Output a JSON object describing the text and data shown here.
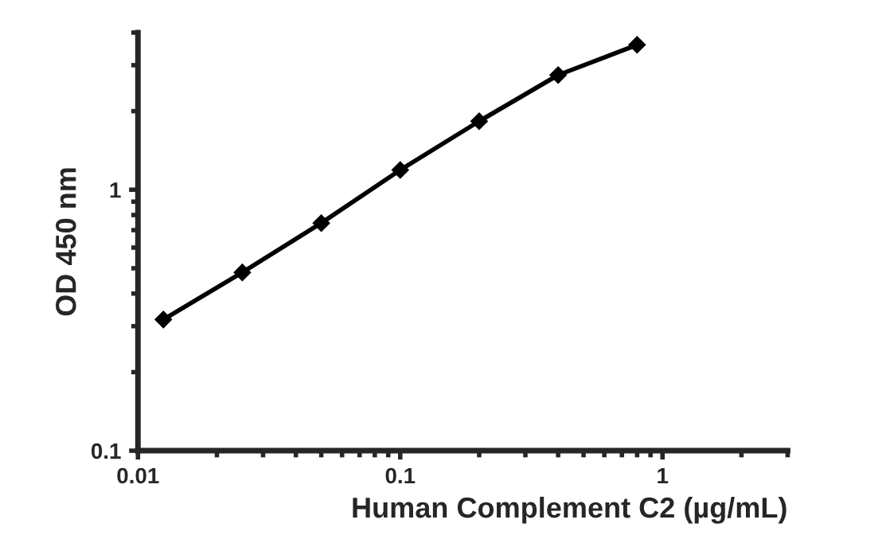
{
  "chart_data": {
    "type": "line",
    "xlabel": "Human Complement C2 (µg/mL)",
    "ylabel": "OD 450 nm",
    "log": "xy",
    "x": [
      0.0125,
      0.025,
      0.05,
      0.1,
      0.2,
      0.4,
      0.8
    ],
    "series": [
      {
        "color": "#000000",
        "values": [
          0.318,
          0.482,
          0.745,
          1.19,
          1.83,
          2.75,
          3.59
        ]
      }
    ],
    "xlim": [
      0.01,
      3
    ],
    "xticks": [
      0.01,
      0.1,
      1
    ],
    "ylim": [
      0.1,
      4
    ],
    "yticks": [
      0.1,
      1
    ],
    "marker": "diamond",
    "line_style": "solid",
    "grid": false,
    "legend": false
  }
}
